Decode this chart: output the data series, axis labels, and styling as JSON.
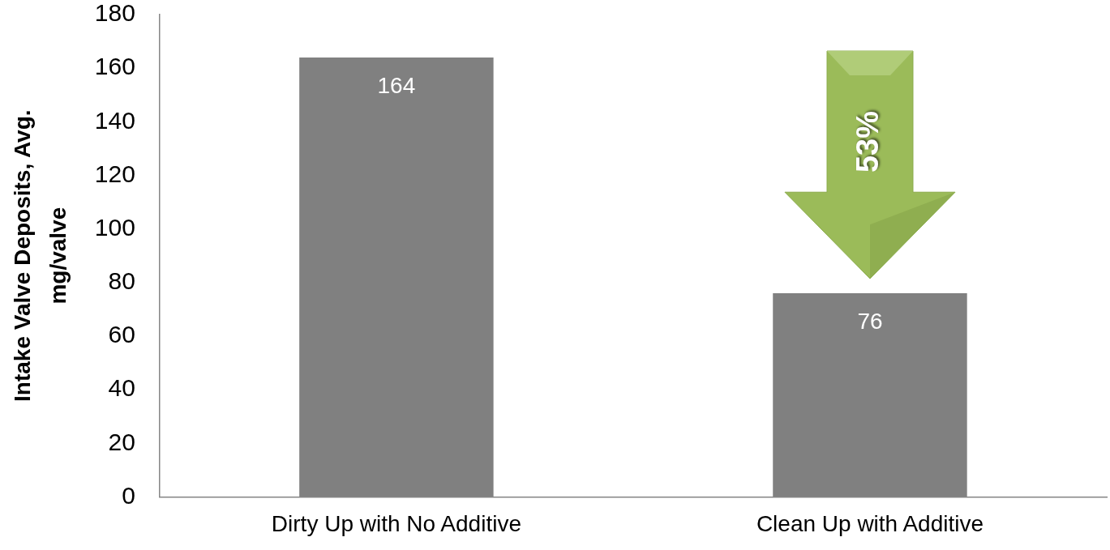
{
  "chart_data": {
    "type": "bar",
    "categories": [
      "Dirty Up with No Additive",
      "Clean Up with Additive"
    ],
    "values": [
      164,
      76
    ],
    "color": "#808080",
    "ylabel": "Intake Valve Deposits, Avg. mg/valve",
    "ylim": [
      0,
      180
    ],
    "yticks": [
      0,
      20,
      40,
      60,
      80,
      100,
      120,
      140,
      160,
      180
    ],
    "data_labels": true,
    "annotations": [
      "53%"
    ]
  }
}
